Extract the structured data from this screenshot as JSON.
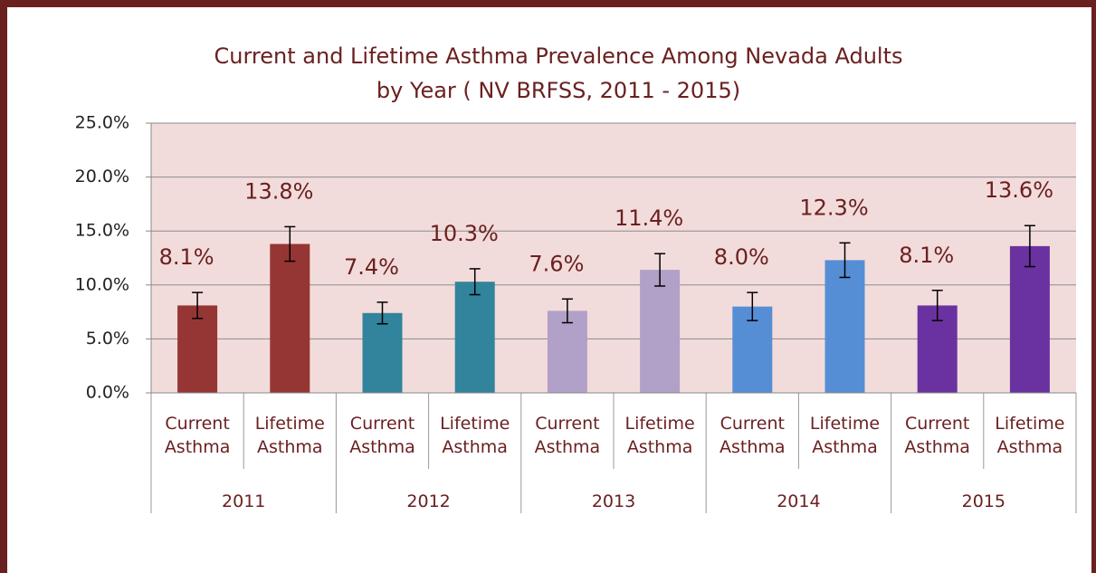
{
  "chart_data": {
    "type": "bar",
    "title": [
      "Current and Lifetime Asthma Prevalence Among Nevada Adults",
      "by Year ( NV BRFSS, 2011 - 2015)"
    ],
    "categories": [
      "Current Asthma",
      "Lifetime Asthma",
      "Current Asthma",
      "Lifetime Asthma",
      "Current Asthma",
      "Lifetime Asthma",
      "Current Asthma",
      "Lifetime Asthma",
      "Current Asthma",
      "Lifetime Asthma"
    ],
    "groups": [
      "2011",
      "2012",
      "2013",
      "2014",
      "2015"
    ],
    "values": [
      8.1,
      13.8,
      7.4,
      10.3,
      7.6,
      11.4,
      8.0,
      12.3,
      8.1,
      13.6
    ],
    "value_labels": [
      "8.1%",
      "13.8%",
      "7.4%",
      "10.3%",
      "7.6%",
      "11.4%",
      "8.0%",
      "12.3%",
      "8.1%",
      "13.6%"
    ],
    "errors": [
      1.2,
      1.6,
      1.0,
      1.2,
      1.1,
      1.5,
      1.3,
      1.6,
      1.4,
      1.9
    ],
    "colors": [
      "#963634",
      "#963634",
      "#31849b",
      "#31849b",
      "#b1a0c7",
      "#b1a0c7",
      "#558ed5",
      "#558ed5",
      "#6a32a0",
      "#6a32a0"
    ],
    "ylim": [
      0,
      25
    ],
    "yticks": [
      {
        "value": 0,
        "label": "0.0%"
      },
      {
        "value": 5,
        "label": "5.0%"
      },
      {
        "value": 10,
        "label": "10.0%"
      },
      {
        "value": 15,
        "label": "15.0%"
      },
      {
        "value": 20,
        "label": "20.0%"
      },
      {
        "value": 25,
        "label": "25.0%"
      }
    ],
    "grid": true
  }
}
